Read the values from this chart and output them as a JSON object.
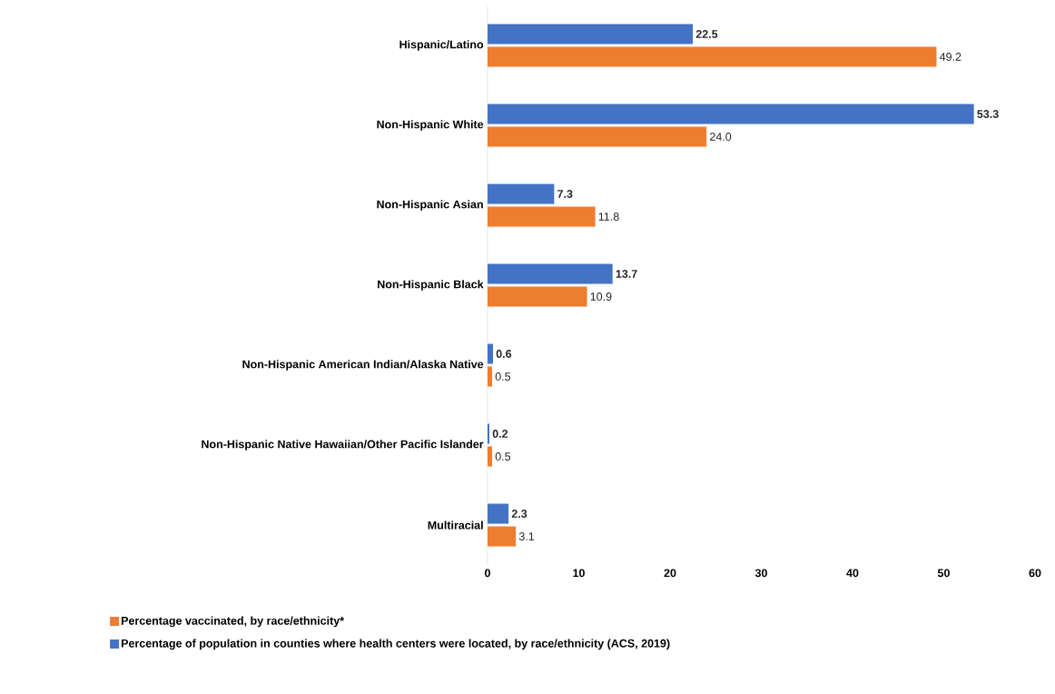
{
  "chart_data": {
    "type": "bar",
    "orientation": "horizontal",
    "categories": [
      "Hispanic/Latino",
      "Non-Hispanic White",
      "Non-Hispanic Asian",
      "Non-Hispanic Black",
      "Non-Hispanic American Indian/Alaska Native",
      "Non-Hispanic Native Hawaiian/Other Pacific Islander",
      "Multiracial"
    ],
    "series": [
      {
        "name": "Percentage vaccinated, by race/ethnicity*",
        "color": "#ed7d31",
        "values": [
          49.2,
          24.0,
          11.8,
          10.9,
          0.5,
          0.5,
          3.1
        ],
        "value_labels": [
          "49.2",
          "24.0",
          "11.8",
          "10.9",
          "0.5",
          "0.5",
          "3.1"
        ]
      },
      {
        "name": "Percentage of population in counties where health centers were located, by race/ethnicity (ACS, 2019)",
        "color": "#4472c4",
        "values": [
          22.5,
          53.3,
          7.3,
          13.7,
          0.6,
          0.2,
          2.3
        ],
        "value_labels": [
          "22.5",
          "53.3",
          "7.3",
          "13.7",
          "0.6",
          "0.2",
          "2.3"
        ]
      }
    ],
    "xlim": [
      0,
      60
    ],
    "xticks": [
      0,
      10,
      20,
      30,
      40,
      50,
      60
    ],
    "legend": "bottom",
    "grid": false
  }
}
